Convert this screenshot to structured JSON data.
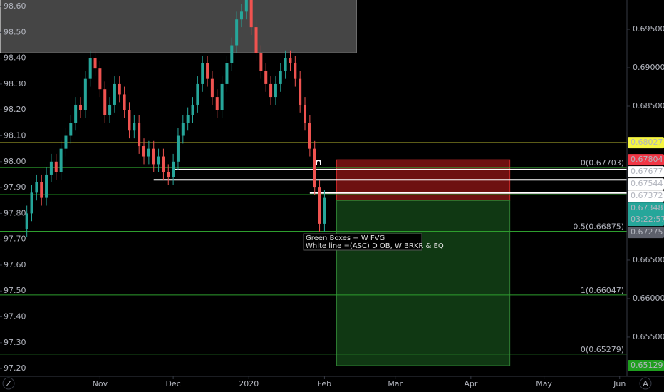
{
  "chart_data": {
    "type": "candlestick",
    "candles": {
      "x": [
        1,
        3,
        5,
        7,
        9,
        11,
        13,
        15,
        17,
        19,
        21,
        23,
        25,
        27,
        29,
        31,
        33,
        35,
        37,
        39,
        41,
        43,
        45,
        47,
        49,
        51,
        53,
        55,
        57,
        59,
        61,
        63,
        65,
        67,
        69,
        71,
        73,
        75,
        77,
        79,
        81,
        83,
        85,
        87,
        89,
        91,
        93,
        95,
        97,
        99,
        101,
        103,
        105,
        107,
        109,
        111,
        113,
        115,
        117,
        119,
        121,
        123
      ],
      "open": [
        97.74,
        97.8,
        97.88,
        97.92,
        97.86,
        97.95,
        98.0,
        97.96,
        98.05,
        98.1,
        98.15,
        98.22,
        98.2,
        98.32,
        98.4,
        98.36,
        98.28,
        98.18,
        98.22,
        98.3,
        98.26,
        98.2,
        98.12,
        98.15,
        98.06,
        98.02,
        98.05,
        97.99,
        98.02,
        97.96,
        97.94,
        98.0,
        98.1,
        98.15,
        98.18,
        98.22,
        98.3,
        98.38,
        98.32,
        98.25,
        98.2,
        98.3,
        98.38,
        98.45,
        98.55,
        98.58,
        98.66,
        98.52,
        98.42,
        98.35,
        98.3,
        98.25,
        98.3,
        98.35,
        98.4,
        98.38,
        98.32,
        98.22,
        98.15,
        98.05,
        97.9,
        97.76
      ],
      "high": [
        97.83,
        97.91,
        97.95,
        97.95,
        97.98,
        98.03,
        98.03,
        98.08,
        98.13,
        98.18,
        98.25,
        98.25,
        98.35,
        98.43,
        98.43,
        98.39,
        98.31,
        98.25,
        98.33,
        98.33,
        98.29,
        98.23,
        98.18,
        98.18,
        98.09,
        98.08,
        98.08,
        98.05,
        98.05,
        97.99,
        98.03,
        98.13,
        98.18,
        98.21,
        98.25,
        98.33,
        98.41,
        98.41,
        98.35,
        98.28,
        98.33,
        98.41,
        98.48,
        98.58,
        98.61,
        98.69,
        98.69,
        98.55,
        98.45,
        98.38,
        98.33,
        98.33,
        98.38,
        98.43,
        98.43,
        98.41,
        98.35,
        98.25,
        98.18,
        98.08,
        97.93,
        97.89
      ],
      "low": [
        97.71,
        97.77,
        97.85,
        97.83,
        97.83,
        97.92,
        97.93,
        97.93,
        98.02,
        98.07,
        98.12,
        98.17,
        98.17,
        98.29,
        98.33,
        98.25,
        98.15,
        98.15,
        98.19,
        98.23,
        98.17,
        98.09,
        98.09,
        98.03,
        97.99,
        97.99,
        97.96,
        97.96,
        97.93,
        97.91,
        97.91,
        97.97,
        98.07,
        98.12,
        98.15,
        98.19,
        98.27,
        98.29,
        98.22,
        98.17,
        98.17,
        98.27,
        98.35,
        98.42,
        98.52,
        98.55,
        98.49,
        98.39,
        98.32,
        98.27,
        98.22,
        98.22,
        98.27,
        98.32,
        98.35,
        98.29,
        98.19,
        98.12,
        98.02,
        97.87,
        97.73,
        97.73
      ],
      "close": [
        97.8,
        97.88,
        97.92,
        97.86,
        97.95,
        98.0,
        97.96,
        98.05,
        98.1,
        98.15,
        98.22,
        98.2,
        98.32,
        98.4,
        98.36,
        98.28,
        98.18,
        98.22,
        98.3,
        98.26,
        98.2,
        98.12,
        98.15,
        98.06,
        98.02,
        98.05,
        97.99,
        98.02,
        97.96,
        97.94,
        98.0,
        98.1,
        98.15,
        98.18,
        98.22,
        98.3,
        98.38,
        98.32,
        98.25,
        98.2,
        98.3,
        98.38,
        98.45,
        98.55,
        98.58,
        98.66,
        98.52,
        98.42,
        98.35,
        98.3,
        98.25,
        98.3,
        98.35,
        98.4,
        98.38,
        98.32,
        98.22,
        98.15,
        98.05,
        97.9,
        97.76,
        97.86
      ],
      "up_color": "#26a69a",
      "down_color": "#ef5350"
    },
    "xlim": [
      -10,
      247
    ],
    "xticks": [
      {
        "value": 31,
        "label": "Nov"
      },
      {
        "value": 61,
        "label": "Dec"
      },
      {
        "value": 92,
        "label": "2020"
      },
      {
        "value": 123,
        "label": "Feb"
      },
      {
        "value": 152,
        "label": "Mar"
      },
      {
        "value": 183,
        "label": "Apr"
      },
      {
        "value": 213,
        "label": "May"
      },
      {
        "value": 244,
        "label": "Jun"
      }
    ],
    "ylim": [
      97.17,
      98.625
    ],
    "yticks": [
      {
        "value": 98.6,
        "label": "98.60"
      },
      {
        "value": 98.5,
        "label": "98.50"
      },
      {
        "value": 98.4,
        "label": "98.40"
      },
      {
        "value": 98.3,
        "label": "98.30"
      },
      {
        "value": 98.2,
        "label": "98.20"
      },
      {
        "value": 98.1,
        "label": "98.10"
      },
      {
        "value": 98.0,
        "label": "98.00"
      },
      {
        "value": 97.9,
        "label": "97.90"
      },
      {
        "value": 97.8,
        "label": "97.80"
      },
      {
        "value": 97.7,
        "label": "97.70"
      },
      {
        "value": 97.6,
        "label": "97.60"
      },
      {
        "value": 97.5,
        "label": "97.50"
      },
      {
        "value": 97.4,
        "label": "97.40"
      },
      {
        "value": 97.3,
        "label": "97.30"
      },
      {
        "value": 97.2,
        "label": "97.20"
      }
    ],
    "y2lim": [
      0.6499,
      0.6988
    ],
    "y2ticks": [
      {
        "value": 0.695,
        "label": "0.69500"
      },
      {
        "value": 0.69,
        "label": "0.69000"
      },
      {
        "value": 0.685,
        "label": "0.68500"
      },
      {
        "value": 0.665,
        "label": "0.66500"
      },
      {
        "value": 0.66,
        "label": "0.66000"
      },
      {
        "value": 0.655,
        "label": "0.65500"
      }
    ],
    "zones": [
      {
        "x": [
          -10,
          136
        ],
        "y": [
          98.42,
          98.7
        ],
        "axis": "y",
        "color": "#ffffff",
        "opacity": 0.27,
        "border": "#ffffff"
      },
      {
        "x": [
          128,
          199
        ],
        "y": [
          0.67275,
          0.67804
        ],
        "axis": "y2",
        "color": "#b71c1c",
        "opacity": 0.6,
        "border": "#c62828"
      },
      {
        "x": [
          128,
          199
        ],
        "y": [
          0.65129,
          0.67275
        ],
        "axis": "y2",
        "color": "#1b5e20",
        "opacity": 0.6,
        "border": "#2e7d32"
      }
    ],
    "lines": [
      {
        "value": 0.68027,
        "x0": -10,
        "color": "#f5f542",
        "width": 1
      },
      {
        "value": 0.67352,
        "x0": -10,
        "color": "#1e8c1e",
        "width": 1
      },
      {
        "value": 0.67677,
        "x0": 61,
        "color": "#ffffff",
        "width": 2
      },
      {
        "value": 0.67544,
        "x0": 53,
        "color": "#ffffff",
        "width": 2
      },
      {
        "value": 0.67372,
        "x0": 117,
        "color": "#ffffff",
        "width": 2
      }
    ],
    "fib_levels": [
      {
        "value": 0.67703,
        "label": "0(0.67703)"
      },
      {
        "value": 0.66875,
        "label": "0.5(0.66875)"
      },
      {
        "value": 0.66047,
        "label": "1(0.66047)"
      },
      {
        "value": 0.65279,
        "label": "0(0.65279)"
      }
    ],
    "fib_color": "#2e9e2e",
    "fib_text_color": "#5fd35f",
    "price_tags": [
      {
        "value": 0.68027,
        "color": "#f5f542",
        "text_color": "#000000"
      },
      {
        "value": 0.67804,
        "color": "#f23645",
        "text_color": "#ffffff"
      },
      {
        "value": 0.67677,
        "color": "#ffffff",
        "text_color": "#000000"
      },
      {
        "value": 0.67544,
        "color": "#ffffff",
        "text_color": "#000000"
      },
      {
        "value": 0.67372,
        "color": "#ffffff",
        "text_color": "#000000"
      },
      {
        "value": 0.67348,
        "color": "#26a69a",
        "text_color": "#ffffff",
        "countdown": "03:22:57"
      },
      {
        "value": 0.67275,
        "color": "#5d606b",
        "text_color": "#ffffff"
      },
      {
        "value": 0.65129,
        "color": "#1f9e1f",
        "text_color": "#ffffff"
      }
    ],
    "annotation": [
      "Green Boxes = W FVG",
      "White line =(ASC) D OB, W BRKR & EQ"
    ],
    "corner_labels": [
      "Z",
      "A"
    ]
  }
}
